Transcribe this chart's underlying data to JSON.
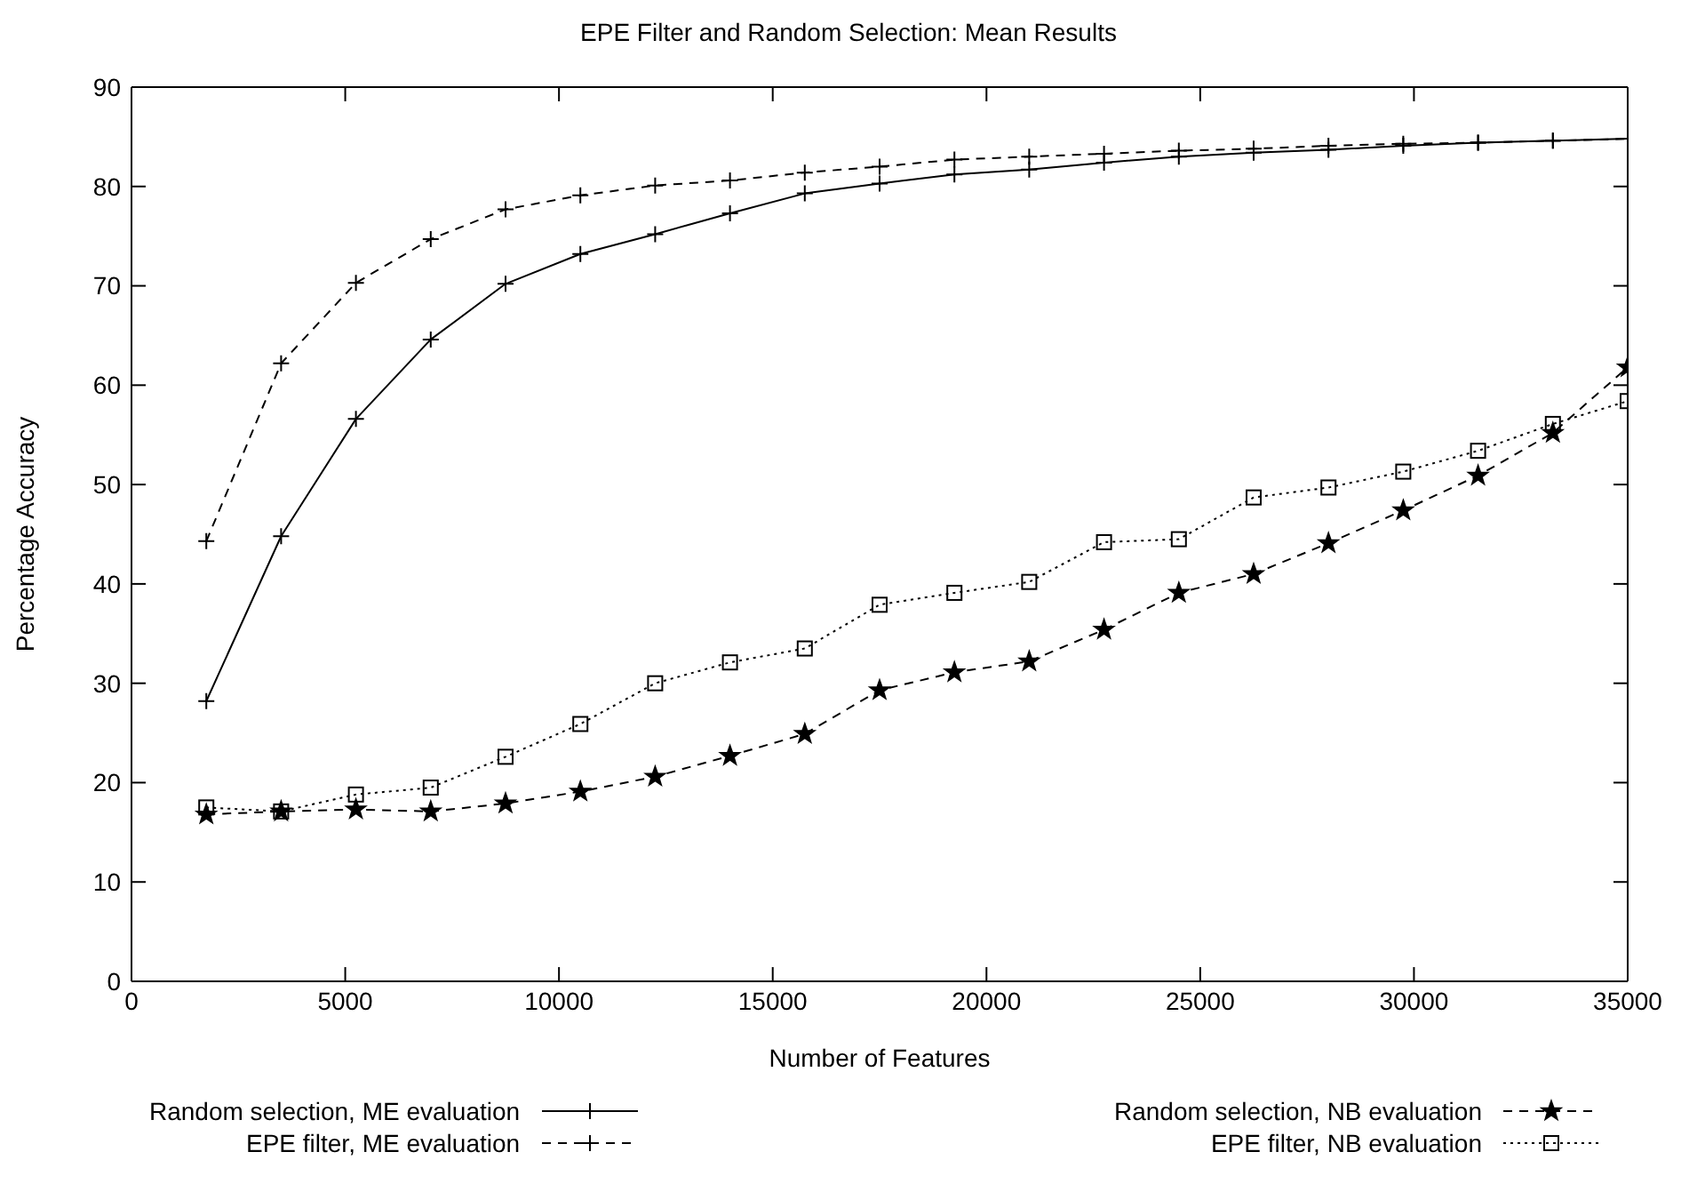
{
  "chart_data": {
    "type": "line",
    "title": "EPE Filter and Random Selection:  Mean Results",
    "xlabel": "Number of Features",
    "ylabel": "Percentage Accuracy",
    "x": [
      1750,
      3500,
      5250,
      7000,
      8750,
      10500,
      12250,
      14000,
      15750,
      17500,
      19250,
      21000,
      22750,
      24500,
      26250,
      28000,
      29750,
      31500,
      33250,
      35000
    ],
    "series": [
      {
        "name": "Random selection, ME evaluation",
        "color": "#000000",
        "marker": "cross",
        "line_style": "solid",
        "values": [
          28.2,
          44.8,
          56.6,
          64.6,
          70.2,
          73.2,
          75.2,
          77.3,
          79.3,
          80.3,
          81.2,
          81.7,
          82.4,
          83.0,
          83.4,
          83.7,
          84.1,
          84.4,
          84.6,
          84.8
        ]
      },
      {
        "name": "EPE filter, ME evaluation",
        "color": "#000000",
        "marker": "cross",
        "line_style": "dashed",
        "values": [
          44.3,
          62.2,
          70.3,
          74.7,
          77.7,
          79.1,
          80.1,
          80.6,
          81.4,
          82.0,
          82.7,
          83.0,
          83.3,
          83.6,
          83.8,
          84.1,
          84.3,
          84.4,
          84.6,
          84.8
        ]
      },
      {
        "name": "Random selection, NB evaluation",
        "color": "#000000",
        "marker": "star",
        "line_style": "dashed",
        "values": [
          16.8,
          17.1,
          17.3,
          17.1,
          17.9,
          19.1,
          20.6,
          22.7,
          24.9,
          29.3,
          31.1,
          32.2,
          35.4,
          39.1,
          41.0,
          44.1,
          47.4,
          50.9,
          55.2,
          61.8
        ]
      },
      {
        "name": "EPE filter, NB evaluation",
        "color": "#000000",
        "marker": "square",
        "line_style": "dotted",
        "values": [
          17.5,
          17.1,
          18.8,
          19.5,
          22.6,
          25.9,
          30.0,
          32.1,
          33.5,
          37.9,
          39.1,
          40.2,
          44.2,
          44.5,
          48.7,
          49.7,
          51.3,
          53.4,
          56.1,
          58.4
        ]
      }
    ],
    "xlim": [
      0,
      35000
    ],
    "xticks": [
      0,
      5000,
      10000,
      15000,
      20000,
      25000,
      30000,
      35000
    ],
    "ylim": [
      0,
      90
    ],
    "yticks": [
      0,
      10,
      20,
      30,
      40,
      50,
      60,
      70,
      80,
      90
    ],
    "grid": false,
    "legend": "bottom"
  }
}
